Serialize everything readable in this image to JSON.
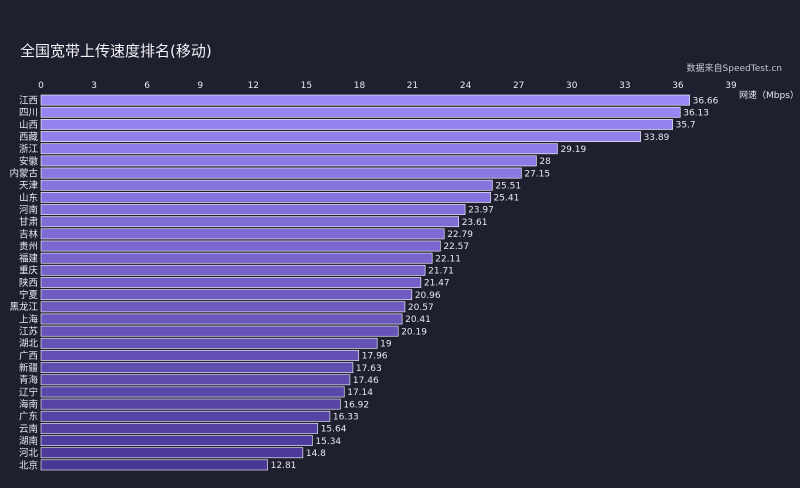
{
  "chart_data": {
    "type": "bar",
    "orientation": "horizontal",
    "title": "全国宽带上传速度排名(移动)",
    "source": "数据来自SpeedTest.cn",
    "xlabel": "网速（Mbps）",
    "ylabel": "",
    "xlim": [
      0,
      39
    ],
    "x_ticks": [
      0,
      3,
      6,
      9,
      12,
      15,
      18,
      21,
      24,
      27,
      30,
      33,
      36,
      39
    ],
    "x_axis_position": "top",
    "grid": false,
    "categories": [
      "江西",
      "四川",
      "山西",
      "西藏",
      "浙江",
      "安徽",
      "内蒙古",
      "天津",
      "山东",
      "河南",
      "甘肃",
      "吉林",
      "贵州",
      "福建",
      "重庆",
      "陕西",
      "宁夏",
      "黑龙江",
      "上海",
      "江苏",
      "湖北",
      "广西",
      "新疆",
      "青海",
      "辽宁",
      "海南",
      "广东",
      "云南",
      "湖南",
      "河北",
      "北京"
    ],
    "values": [
      36.66,
      36.13,
      35.7,
      33.89,
      29.19,
      28,
      27.15,
      25.51,
      25.41,
      23.97,
      23.61,
      22.79,
      22.57,
      22.11,
      21.71,
      21.47,
      20.96,
      20.57,
      20.41,
      20.19,
      19,
      17.96,
      17.63,
      17.46,
      17.14,
      16.92,
      16.33,
      15.64,
      15.34,
      14.8,
      12.81
    ],
    "value_labels": [
      "36.66",
      "36.13",
      "35.7",
      "33.89",
      "29.19",
      "28",
      "27.15",
      "25.51",
      "25.41",
      "23.97",
      "23.61",
      "22.79",
      "22.57",
      "22.11",
      "21.71",
      "21.47",
      "20.96",
      "20.57",
      "20.41",
      "20.19",
      "19",
      "17.96",
      "17.63",
      "17.46",
      "17.14",
      "16.92",
      "16.33",
      "15.64",
      "15.34",
      "14.8",
      "12.81"
    ],
    "colors": {
      "background": "#1e1f2f",
      "bar_top": "#9b87f5",
      "bar_bottom": "#4b3796",
      "bar_border": "#ffffff",
      "text": "#e9e9ef"
    }
  }
}
